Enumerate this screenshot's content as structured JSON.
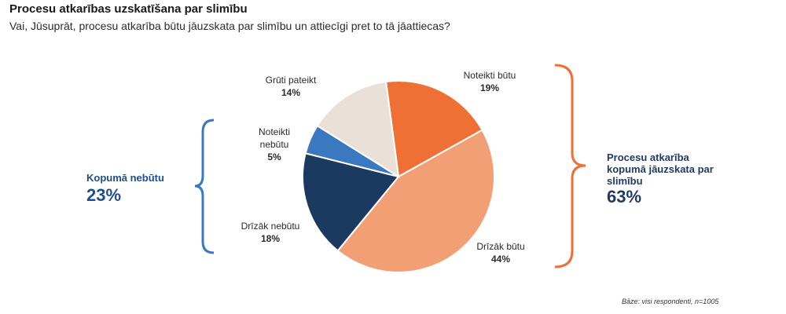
{
  "title": "Procesu atkarības uzskatīšana par slimību",
  "subtitle": "Vai, Jūsuprāt, procesu atkarība būtu jāuzskata par slimību un attiecīgi pret to tā jāattiecas?",
  "chart_data": {
    "type": "pie",
    "slices": [
      {
        "label": "Noteikti būtu",
        "value": 19,
        "display": "19%",
        "color": "#ef7035"
      },
      {
        "label": "Drīzāk būtu",
        "value": 44,
        "display": "44%",
        "color": "#f39f75"
      },
      {
        "label": "Drīzāk nebūtu",
        "value": 18,
        "display": "18%",
        "color": "#1b3a60"
      },
      {
        "label": "Noteikti nebūtu",
        "value": 5,
        "display": "5%",
        "color": "#3a78c0"
      },
      {
        "label": "Grūti pateikt",
        "value": 14,
        "display": "14%",
        "color": "#e9e1d8"
      }
    ],
    "groups": [
      {
        "label": "Kopumā nebūtu",
        "value": "23%",
        "color": "#3a78c0"
      },
      {
        "label": "Procesu atkarība kopumā jāuzskata par slimību",
        "value": "63%",
        "color": "#ef7035"
      }
    ]
  },
  "base_note": "Bāze: visi respondenti, n=1005"
}
